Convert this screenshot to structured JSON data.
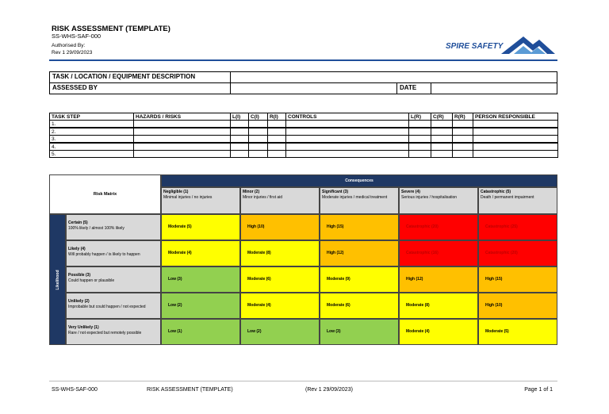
{
  "header": {
    "title": "RISK ASSESSMENT (TEMPLATE)",
    "doc_code": "SS-WHS-SAF-000",
    "authorised_by": "Authorised By:",
    "revision": "Rev 1 29/09/2023",
    "logo": "SPIRE SAFETY"
  },
  "description_table": {
    "task_label": "TASK / LOCATION / EQUIPMENT DESCRIPTION",
    "assessed_by_label": "ASSESSED BY",
    "date_label": "DATE"
  },
  "task_table": {
    "columns": [
      "TASK STEP",
      "HAZARDS / RISKS",
      "L(I)",
      "C(I)",
      "R(I)",
      "CONTROLS",
      "L(R)",
      "C(R)",
      "R(R)",
      "PERSON RESPONSIBLE"
    ],
    "rows": [
      "1.",
      "2.",
      "3.",
      "4.",
      "5."
    ]
  },
  "risk_matrix": {
    "corner": "Risk Matrix",
    "consequences_title": "Consequences",
    "likelihood_title": "Likelihood",
    "consequences": [
      {
        "name": "Negligible (1)",
        "description": "Minimal injuries / no injuries"
      },
      {
        "name": "Minor (2)",
        "description": "Minor injuries / first aid"
      },
      {
        "name": "Significant (3)",
        "description": "Moderate injuries / medical treatment"
      },
      {
        "name": "Severe (4)",
        "description": "Serious injuries / hospitalisation"
      },
      {
        "name": "Catastrophic (5)",
        "description": "Death / permanent impairment"
      }
    ],
    "likelihoods": [
      {
        "name": "Certain (5)",
        "description": "100% likely / almost 100% likely"
      },
      {
        "name": "Likely (4)",
        "description": "Will probably happen / is likely to happen"
      },
      {
        "name": "Possible (3)",
        "description": "Could happen or plausible"
      },
      {
        "name": "Unlikely (2)",
        "description": "Improbable but could happen / not expected"
      },
      {
        "name": "Very Unlikely (1)",
        "description": "Rare / not expected but remotely possible"
      }
    ],
    "cells": [
      [
        "Moderate (5)",
        "High (10)",
        "High (15)",
        "Catastrophic (20)",
        "Catastrophic (25)"
      ],
      [
        "Moderate (4)",
        "Moderate (8)",
        "High (12)",
        "Catastrophic (16)",
        "Catastrophic (20)"
      ],
      [
        "Low (3)",
        "Moderate (6)",
        "Moderate (9)",
        "High (12)",
        "High (15)"
      ],
      [
        "Low (2)",
        "Moderate (4)",
        "Moderate (6)",
        "Moderate (8)",
        "High (10)"
      ],
      [
        "Low (1)",
        "Low (2)",
        "Low (3)",
        "Moderate (4)",
        "Moderate (5)"
      ]
    ]
  },
  "footer": {
    "doc_code": "SS-WHS-SAF-000",
    "title": "RISK ASSESSMENT (TEMPLATE)",
    "revision": "(Rev 1 29/09/2023)",
    "page": "Page 1 of 1"
  }
}
